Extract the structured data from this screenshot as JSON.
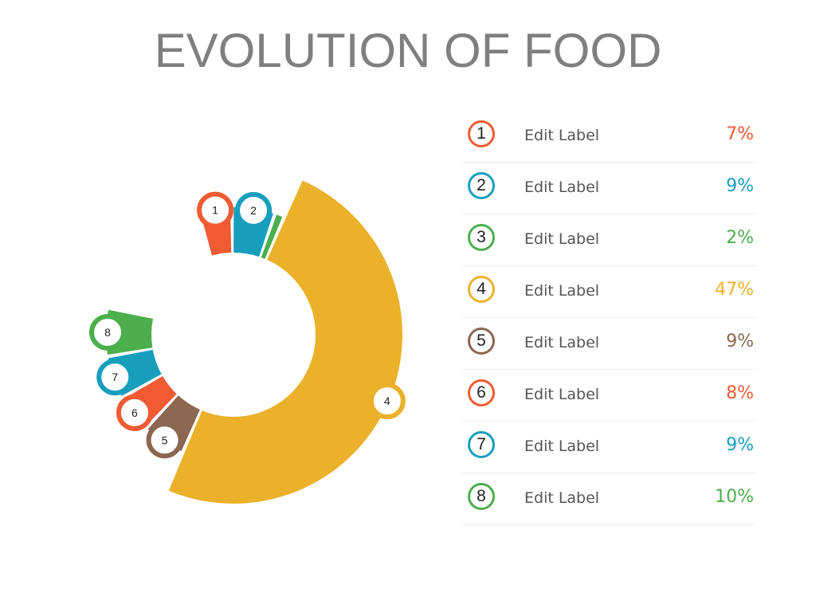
{
  "title": "EVOLUTION OF FOOD",
  "colors": {
    "orange": "#f05b33",
    "teal": "#179ebd",
    "green": "#4cae4c",
    "yellow": "#ebb12a",
    "brown": "#8b6651"
  },
  "chart_data": {
    "type": "pie",
    "title": "EVOLUTION OF FOOD",
    "categories": [
      "1",
      "2",
      "3",
      "4",
      "5",
      "6",
      "7",
      "8"
    ],
    "values": [
      7,
      9,
      2,
      47,
      9,
      8,
      9,
      10
    ],
    "labels": [
      "Edit Label",
      "Edit Label",
      "Edit Label",
      "Edit Label",
      "Edit Label",
      "Edit Label",
      "Edit Label",
      "Edit Label"
    ],
    "value_labels": [
      "7%",
      "9%",
      "2%",
      "47%",
      "9%",
      "8%",
      "9%",
      "10%"
    ],
    "slice_colors": [
      "#f05b33",
      "#179ebd",
      "#4cae4c",
      "#ebb12a",
      "#8b6651",
      "#f05b33",
      "#179ebd",
      "#4cae4c"
    ],
    "legend_position": "right",
    "style": "donut",
    "start_angle_deg": 344,
    "total_sweep_deg": 298
  },
  "legend": [
    {
      "num": "1",
      "label": "Edit Label",
      "value": "7%",
      "color": "#f05b33"
    },
    {
      "num": "2",
      "label": "Edit Label",
      "value": "9%",
      "color": "#179ebd"
    },
    {
      "num": "3",
      "label": "Edit Label",
      "value": "2%",
      "color": "#4cae4c"
    },
    {
      "num": "4",
      "label": "Edit Label",
      "value": "47%",
      "color": "#ebb12a"
    },
    {
      "num": "5",
      "label": "Edit Label",
      "value": "9%",
      "color": "#8b6651"
    },
    {
      "num": "6",
      "label": "Edit Label",
      "value": "8%",
      "color": "#f05b33"
    },
    {
      "num": "7",
      "label": "Edit Label",
      "value": "9%",
      "color": "#179ebd"
    },
    {
      "num": "8",
      "label": "Edit Label",
      "value": "10%",
      "color": "#4cae4c"
    }
  ]
}
